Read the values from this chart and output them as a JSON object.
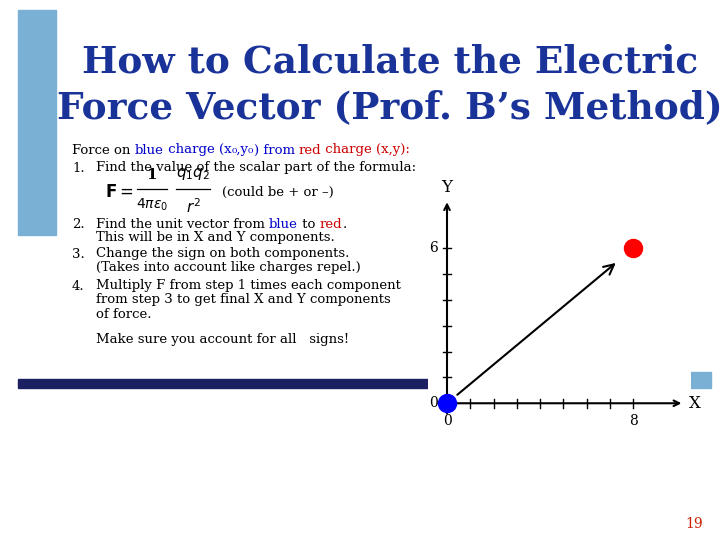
{
  "title_line1": "How to Calculate the Electric",
  "title_line2": "Force Vector (Prof. B’s Method)",
  "title_color": "#1a3399",
  "bg_color": "#ffffff",
  "left_bar_color": "#7ab0d4",
  "top_bar_color": "#1a2060",
  "right_bar_color": "#7ab0d4",
  "slide_number": "19",
  "slide_number_color": "#cc2200",
  "blue_dot": [
    0,
    0
  ],
  "red_dot": [
    8,
    6
  ],
  "graph_xlim": [
    -0.8,
    10.5
  ],
  "graph_ylim": [
    -0.8,
    8.2
  ],
  "graph_xlabel": "X",
  "graph_ylabel": "Y",
  "graph_x_tick_label": "8",
  "graph_y_tick_label": "6",
  "graph_origin_label": "0"
}
